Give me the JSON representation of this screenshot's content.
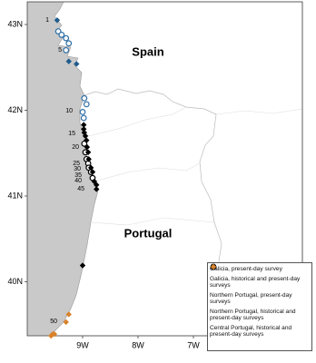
{
  "map": {
    "countries": [
      "Spain",
      "Portugal"
    ],
    "lat_ticks": [
      {
        "value": 43,
        "label": "43N"
      },
      {
        "value": 42,
        "label": "42N"
      },
      {
        "value": 41,
        "label": "41N"
      },
      {
        "value": 40,
        "label": "40N"
      }
    ],
    "lon_ticks": [
      {
        "value": -9,
        "label": "9W"
      },
      {
        "value": -8,
        "label": "8W"
      },
      {
        "value": -7,
        "label": "7W"
      }
    ],
    "site_labels": [
      "1",
      "5",
      "10",
      "15",
      "20",
      "25",
      "30",
      "35",
      "40",
      "45",
      "50"
    ],
    "sites": [
      {
        "name": "Galicia, present-day survey",
        "color": "#2e6da4",
        "marker": "circle-open",
        "points": [
          [
            -9.44,
            42.92
          ],
          [
            -9.38,
            42.88
          ],
          [
            -9.3,
            42.84
          ],
          [
            -9.25,
            42.78
          ],
          [
            -9.3,
            42.7
          ],
          [
            -8.97,
            42.14
          ],
          [
            -8.93,
            42.07
          ],
          [
            -9.0,
            41.98
          ],
          [
            -8.98,
            41.91
          ]
        ]
      },
      {
        "name": "Galicia, historical and present-day surveys",
        "color": "#1f5b8c",
        "marker": "diamond",
        "points": [
          [
            -9.46,
            43.05
          ],
          [
            -9.25,
            42.57
          ],
          [
            -9.11,
            42.54
          ]
        ]
      },
      {
        "name": "Northern Portugal, present-day surveys",
        "color": "#000000",
        "marker": "circle-open",
        "points": [
          [
            -8.97,
            41.61
          ],
          [
            -8.95,
            41.51
          ],
          [
            -8.93,
            41.43
          ],
          [
            -8.9,
            41.38
          ],
          [
            -8.89,
            41.33
          ],
          [
            -8.85,
            41.28
          ],
          [
            -8.82,
            41.21
          ]
        ]
      },
      {
        "name": "Northern Portugal, historical and present-day surveys",
        "color": "#000000",
        "marker": "diamond",
        "points": [
          [
            -8.98,
            41.83
          ],
          [
            -8.98,
            41.78
          ],
          [
            -8.97,
            41.74
          ],
          [
            -8.95,
            41.7
          ],
          [
            -8.93,
            41.65
          ],
          [
            -8.92,
            41.57
          ],
          [
            -8.9,
            41.51
          ],
          [
            -8.89,
            41.43
          ],
          [
            -8.85,
            41.33
          ],
          [
            -8.82,
            41.28
          ],
          [
            -8.79,
            41.17
          ],
          [
            -8.75,
            41.13
          ],
          [
            -8.75,
            41.08
          ],
          [
            -9.0,
            40.19
          ]
        ]
      },
      {
        "name": "Central Portugal, historical and present-day surveys",
        "color": "#d9822b",
        "marker": "diamond",
        "points": [
          [
            -9.25,
            39.62
          ],
          [
            -9.3,
            39.53
          ],
          [
            -9.54,
            39.39
          ],
          [
            -9.57,
            39.37
          ],
          [
            -9.51,
            39.39
          ]
        ]
      }
    ]
  }
}
